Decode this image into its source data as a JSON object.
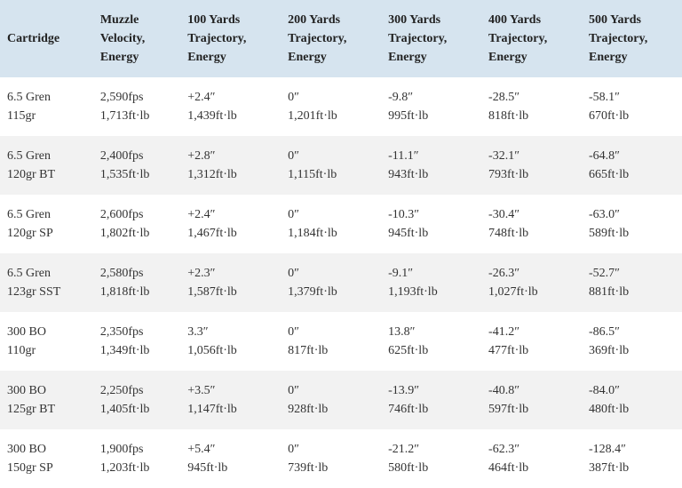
{
  "table": {
    "type": "table",
    "background_color": "#ffffff",
    "header_bg_color": "#d6e4ef",
    "row_alt_bg_color": "#f2f2f2",
    "text_color": "#333333",
    "font_family": "Georgia, serif",
    "font_size": 14,
    "columns": [
      {
        "label": "Cartridge",
        "width": "12%"
      },
      {
        "label_line1": "Muzzle",
        "label_line2": "Velocity,",
        "label_line3": "Energy",
        "width": "14%"
      },
      {
        "label_line1": "100 Yards",
        "label_line2": "Trajectory,",
        "label_line3": "Energy",
        "width": "15%"
      },
      {
        "label_line1": "200 Yards",
        "label_line2": "Trajectory,",
        "label_line3": "Energy",
        "width": "15%"
      },
      {
        "label_line1": "300 Yards",
        "label_line2": "Trajectory,",
        "label_line3": "Energy",
        "width": "15%"
      },
      {
        "label_line1": "400 Yards",
        "label_line2": "Trajectory,",
        "label_line3": "Energy",
        "width": "15%"
      },
      {
        "label_line1": "500 Yards",
        "label_line2": "Trajectory,",
        "label_line3": "Energy",
        "width": "14%"
      }
    ],
    "rows": [
      {
        "cartridge_line1": "6.5 Gren",
        "cartridge_line2": "115gr",
        "cells": [
          {
            "line1": "2,590fps",
            "line2": "1,713ft·lb"
          },
          {
            "line1": "+2.4″",
            "line2": "1,439ft·lb"
          },
          {
            "line1": "0″",
            "line2": "1,201ft·lb"
          },
          {
            "line1": "-9.8″",
            "line2": "995ft·lb"
          },
          {
            "line1": "-28.5″",
            "line2": "818ft·lb"
          },
          {
            "line1": "-58.1″",
            "line2": "670ft·lb"
          }
        ]
      },
      {
        "cartridge_line1": "6.5 Gren",
        "cartridge_line2": "120gr BT",
        "cells": [
          {
            "line1": "2,400fps",
            "line2": "1,535ft·lb"
          },
          {
            "line1": "+2.8″",
            "line2": "1,312ft·lb"
          },
          {
            "line1": "0″",
            "line2": "1,115ft·lb"
          },
          {
            "line1": "-11.1″",
            "line2": "943ft·lb"
          },
          {
            "line1": "-32.1″",
            "line2": "793ft·lb"
          },
          {
            "line1": "-64.8″",
            "line2": "665ft·lb"
          }
        ]
      },
      {
        "cartridge_line1": "6.5 Gren",
        "cartridge_line2": "120gr SP",
        "cells": [
          {
            "line1": "2,600fps",
            "line2": "1,802ft·lb"
          },
          {
            "line1": "+2.4″",
            "line2": "1,467ft·lb"
          },
          {
            "line1": "0″",
            "line2": "1,184ft·lb"
          },
          {
            "line1": "-10.3″",
            "line2": "945ft·lb"
          },
          {
            "line1": "-30.4″",
            "line2": "748ft·lb"
          },
          {
            "line1": "-63.0″",
            "line2": "589ft·lb"
          }
        ]
      },
      {
        "cartridge_line1": "6.5 Gren",
        "cartridge_line2": "123gr SST",
        "cells": [
          {
            "line1": "2,580fps",
            "line2": "1,818ft·lb"
          },
          {
            "line1": "+2.3″",
            "line2": "1,587ft·lb"
          },
          {
            "line1": "0″",
            "line2": "1,379ft·lb"
          },
          {
            "line1": "-9.1″",
            "line2": "1,193ft·lb"
          },
          {
            "line1": "-26.3″",
            "line2": "1,027ft·lb"
          },
          {
            "line1": "-52.7″",
            "line2": "881ft·lb"
          }
        ]
      },
      {
        "cartridge_line1": "300 BO",
        "cartridge_line2": "110gr",
        "cells": [
          {
            "line1": "2,350fps",
            "line2": "1,349ft·lb"
          },
          {
            "line1": "3.3″",
            "line2": "1,056ft·lb"
          },
          {
            "line1": "0″",
            "line2": "817ft·lb"
          },
          {
            "line1": "13.8″",
            "line2": "625ft·lb"
          },
          {
            "line1": "-41.2″",
            "line2": "477ft·lb"
          },
          {
            "line1": "-86.5″",
            "line2": "369ft·lb"
          }
        ]
      },
      {
        "cartridge_line1": "300 BO",
        "cartridge_line2": "125gr BT",
        "cells": [
          {
            "line1": "2,250fps",
            "line2": "1,405ft·lb"
          },
          {
            "line1": "+3.5″",
            "line2": "1,147ft·lb"
          },
          {
            "line1": "0″",
            "line2": "928ft·lb"
          },
          {
            "line1": "-13.9″",
            "line2": "746ft·lb"
          },
          {
            "line1": "-40.8″",
            "line2": "597ft·lb"
          },
          {
            "line1": "-84.0″",
            "line2": "480ft·lb"
          }
        ]
      },
      {
        "cartridge_line1": "300 BO",
        "cartridge_line2": "150gr SP",
        "cells": [
          {
            "line1": "1,900fps",
            "line2": "1,203ft·lb"
          },
          {
            "line1": "+5.4″",
            "line2": "945ft·lb"
          },
          {
            "line1": "0″",
            "line2": "739ft·lb"
          },
          {
            "line1": "-21.2″",
            "line2": "580ft·lb"
          },
          {
            "line1": "-62.3″",
            "line2": "464ft·lb"
          },
          {
            "line1": "-128.4″",
            "line2": "387ft·lb"
          }
        ]
      }
    ]
  }
}
